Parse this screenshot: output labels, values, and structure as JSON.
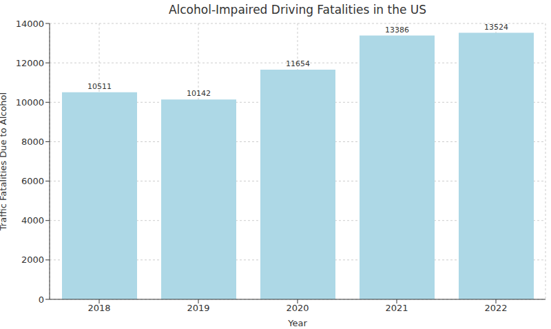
{
  "chart_data": {
    "type": "bar",
    "title": "Alcohol-Impaired Driving Fatalities in the US",
    "x_label": "Year",
    "y_label": "Traffic Fatalities Due to Alcohol",
    "categories": [
      "2018",
      "2019",
      "2020",
      "2021",
      "2022"
    ],
    "values": [
      10511,
      10142,
      11654,
      13386,
      13524
    ],
    "color": "#add8e6",
    "ylim": [
      0,
      14000
    ],
    "yticks": [
      0,
      2000,
      4000,
      6000,
      8000,
      10000,
      12000,
      14000
    ],
    "grid": true,
    "data_labels": true
  }
}
